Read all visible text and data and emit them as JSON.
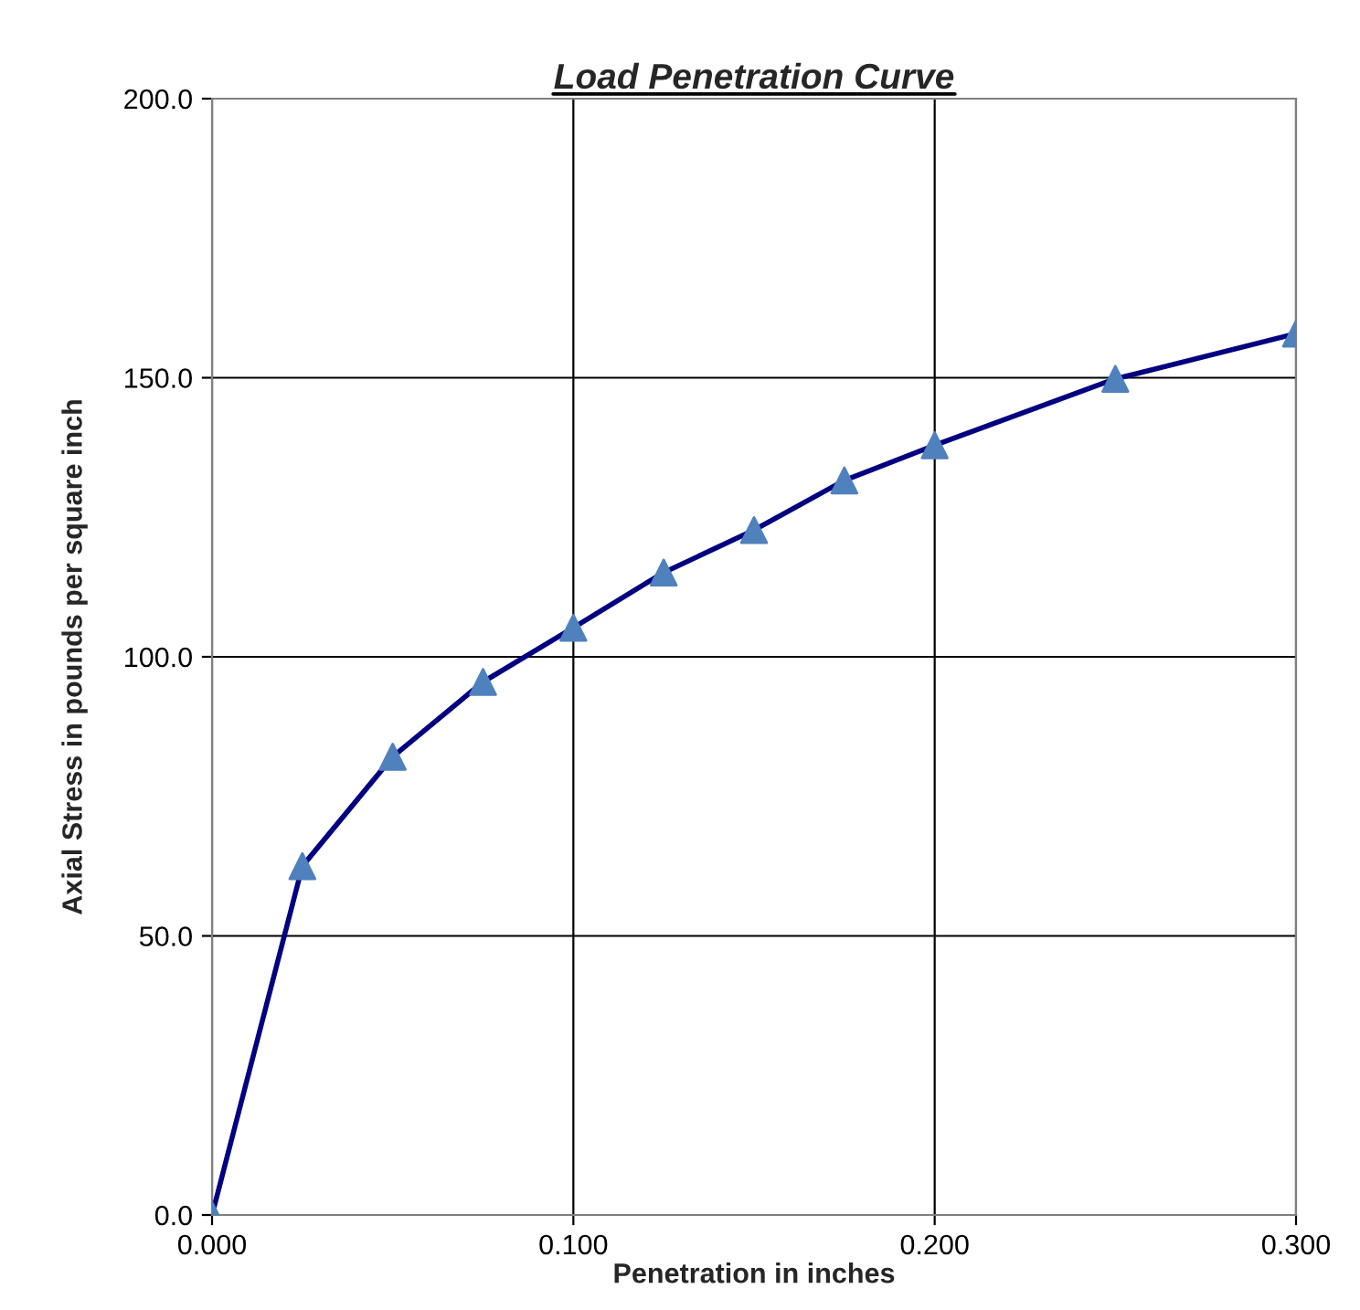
{
  "chart_data": {
    "type": "line",
    "title": "Load Penetration Curve",
    "xlabel": "Penetration in inches",
    "ylabel": "Axial Stress in pounds per square inch",
    "x": [
      0.0,
      0.025,
      0.05,
      0.075,
      0.1,
      0.125,
      0.15,
      0.175,
      0.2,
      0.25,
      0.3
    ],
    "series": [
      {
        "color": "#000080",
        "values": [
          0.0,
          62.5,
          82.1,
          95.5,
          105.2,
          115.1,
          122.7,
          131.6,
          137.9,
          149.8,
          157.9
        ]
      }
    ],
    "xlim": [
      0.0,
      0.3
    ],
    "xticks": [
      {
        "value": 0.0,
        "label": "0.000"
      },
      {
        "value": 0.1,
        "label": "0.100"
      },
      {
        "value": 0.2,
        "label": "0.200"
      },
      {
        "value": 0.3,
        "label": "0.300"
      }
    ],
    "ylim": [
      0.0,
      200.0
    ],
    "yticks": [
      {
        "value": 0.0,
        "label": "0.0"
      },
      {
        "value": 50.0,
        "label": "50.0"
      },
      {
        "value": 100.0,
        "label": "100.0"
      },
      {
        "value": 150.0,
        "label": "150.0"
      },
      {
        "value": 200.0,
        "label": "200.0"
      }
    ],
    "grid": true,
    "marker": "triangle",
    "line_style": "solid"
  }
}
